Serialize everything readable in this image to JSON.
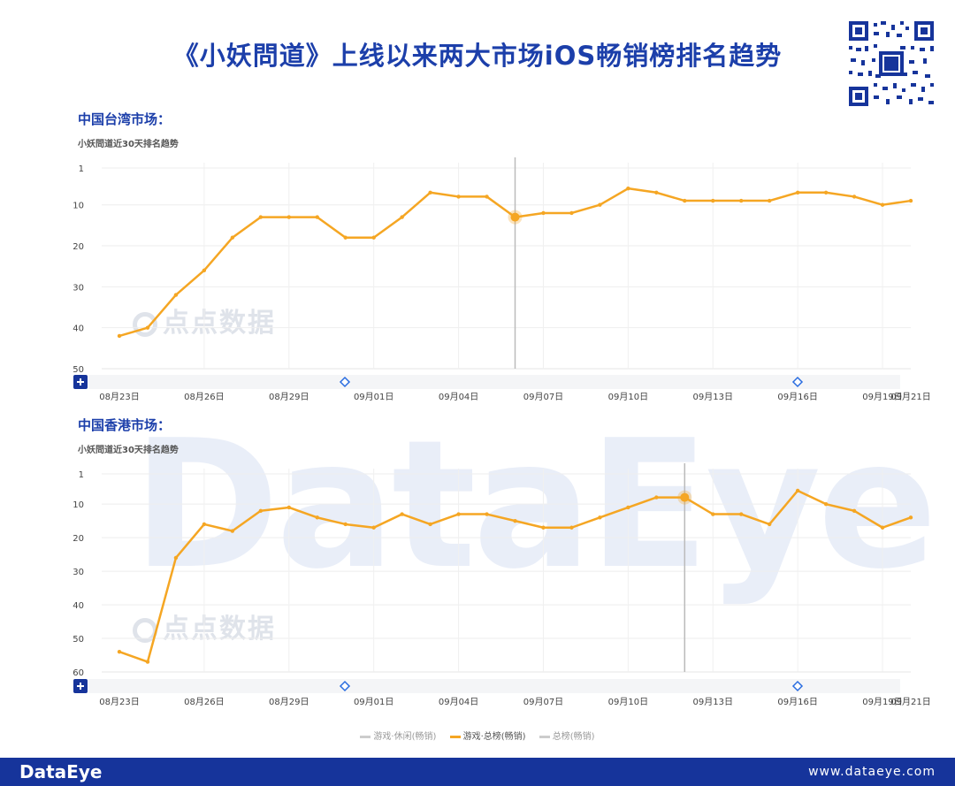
{
  "title": "《小妖問道》上线以来两大市场iOS畅销榜排名趋势",
  "watermark": "DataEye",
  "dd_watermark": "点点数据",
  "colors": {
    "accent": "#16349b",
    "line": "#f5a623",
    "title": "#1c3faa"
  },
  "icons": {
    "qr": "qr-code-icon",
    "zoom": "plus-icon",
    "slider_handle": "diamond-icon"
  },
  "legend": [
    {
      "name": "游戏·休闲(畅销)",
      "color": "#cccccc",
      "active": false
    },
    {
      "name": "游戏·总榜(畅销)",
      "color": "#f5a623",
      "active": true
    },
    {
      "name": "总榜(畅销)",
      "color": "#cccccc",
      "active": false
    }
  ],
  "footer": {
    "brand": "DataEye",
    "url": "www.dataeye.com"
  },
  "chart_data": [
    {
      "type": "line",
      "market_title": "中国台湾市场：",
      "subtitle": "小妖問道近30天排名趋势",
      "x_ticks": [
        "08月23日",
        "08月26日",
        "08月29日",
        "09月01日",
        "09月04日",
        "09月07日",
        "09月10日",
        "09月13日",
        "09月16日",
        "09月19日",
        "09月21日"
      ],
      "y_ticks": [
        1,
        10,
        20,
        30,
        40,
        50
      ],
      "ylim": [
        1,
        50
      ],
      "y_inverted": true,
      "highlight_index": 14,
      "series": [
        {
          "values": [
            42,
            40,
            32,
            26,
            18,
            13,
            13,
            13,
            18,
            18,
            13,
            7,
            8,
            8,
            13,
            12,
            12,
            10,
            6,
            7,
            9,
            9,
            9,
            9,
            7,
            7,
            8,
            10,
            9
          ]
        }
      ]
    },
    {
      "type": "line",
      "market_title": "中国香港市场：",
      "subtitle": "小妖問道近30天排名趋势",
      "x_ticks": [
        "08月23日",
        "08月26日",
        "08月29日",
        "09月01日",
        "09月04日",
        "09月07日",
        "09月10日",
        "09月13日",
        "09月16日",
        "09月19日",
        "09月21日"
      ],
      "y_ticks": [
        1,
        10,
        20,
        30,
        40,
        50,
        60
      ],
      "ylim": [
        1,
        60
      ],
      "y_inverted": true,
      "highlight_index": 20,
      "series": [
        {
          "values": [
            54,
            57,
            26,
            16,
            18,
            12,
            11,
            14,
            16,
            17,
            13,
            16,
            13,
            13,
            15,
            17,
            17,
            14,
            11,
            8,
            8,
            13,
            13,
            16,
            6,
            10,
            12,
            17,
            14
          ]
        }
      ]
    }
  ]
}
